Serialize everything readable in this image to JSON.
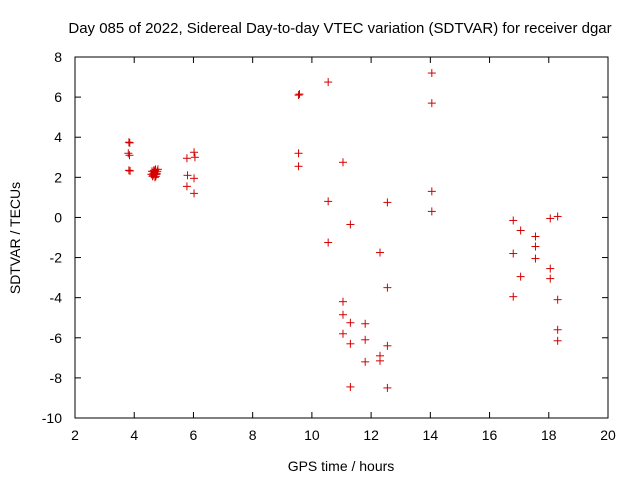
{
  "chart_data": {
    "type": "scatter",
    "title": "Day 085 of 2022, Sidereal Day-to-day VTEC variation (SDTVAR) for receiver dgar",
    "xlabel": "GPS time / hours",
    "ylabel": "SDTVAR / TECUs",
    "xlim": [
      2,
      20
    ],
    "ylim": [
      -10,
      8
    ],
    "xticks": [
      "2",
      "4",
      "6",
      "8",
      "10",
      "12",
      "14",
      "16",
      "18",
      "20"
    ],
    "yticks": [
      "-10",
      "-8",
      "-6",
      "-4",
      "-2",
      "0",
      "2",
      "4",
      "6",
      "8"
    ],
    "grid": false,
    "marker": "plus",
    "color": "#d40000",
    "series": [
      {
        "name": "SDTVAR",
        "points": [
          [
            3.82,
            3.75
          ],
          [
            3.85,
            3.72
          ],
          [
            3.8,
            3.2
          ],
          [
            3.84,
            3.1
          ],
          [
            3.82,
            2.35
          ],
          [
            3.86,
            2.32
          ],
          [
            4.6,
            2.3
          ],
          [
            4.65,
            2.2
          ],
          [
            4.7,
            2.35
          ],
          [
            4.75,
            2.15
          ],
          [
            4.62,
            2.05
          ],
          [
            4.68,
            2.25
          ],
          [
            4.72,
            2.4
          ],
          [
            4.78,
            2.3
          ],
          [
            4.64,
            2.1
          ],
          [
            4.7,
            2.0
          ],
          [
            4.76,
            2.2
          ],
          [
            4.66,
            2.35
          ],
          [
            4.8,
            2.4
          ],
          [
            4.58,
            2.15
          ],
          [
            4.73,
            2.05
          ],
          [
            4.69,
            2.28
          ],
          [
            5.78,
            2.95
          ],
          [
            6.02,
            3.25
          ],
          [
            6.05,
            3.0
          ],
          [
            5.8,
            2.1
          ],
          [
            6.02,
            1.95
          ],
          [
            5.78,
            1.55
          ],
          [
            6.02,
            1.2
          ],
          [
            9.55,
            6.1
          ],
          [
            9.58,
            6.15
          ],
          [
            9.55,
            3.2
          ],
          [
            9.55,
            2.55
          ],
          [
            10.55,
            6.75
          ],
          [
            10.55,
            0.8
          ],
          [
            10.55,
            -1.25
          ],
          [
            11.05,
            2.75
          ],
          [
            11.3,
            -0.35
          ],
          [
            11.05,
            -4.2
          ],
          [
            11.05,
            -4.85
          ],
          [
            11.3,
            -5.25
          ],
          [
            11.05,
            -5.8
          ],
          [
            11.3,
            -6.3
          ],
          [
            11.3,
            -8.45
          ],
          [
            11.8,
            -5.3
          ],
          [
            11.8,
            -6.1
          ],
          [
            11.8,
            -7.2
          ],
          [
            12.3,
            -1.75
          ],
          [
            12.3,
            -6.9
          ],
          [
            12.3,
            -7.15
          ],
          [
            12.55,
            0.75
          ],
          [
            12.55,
            -3.5
          ],
          [
            12.55,
            -6.4
          ],
          [
            12.55,
            -8.5
          ],
          [
            14.05,
            7.2
          ],
          [
            14.05,
            5.7
          ],
          [
            14.05,
            1.3
          ],
          [
            14.05,
            0.3
          ],
          [
            16.8,
            -0.15
          ],
          [
            17.05,
            -0.65
          ],
          [
            16.8,
            -1.8
          ],
          [
            17.05,
            -2.95
          ],
          [
            16.8,
            -3.95
          ],
          [
            17.55,
            -0.95
          ],
          [
            17.55,
            -1.45
          ],
          [
            17.55,
            -2.05
          ],
          [
            18.05,
            -0.05
          ],
          [
            18.3,
            0.05
          ],
          [
            18.05,
            -2.55
          ],
          [
            18.05,
            -3.05
          ],
          [
            18.3,
            -4.1
          ],
          [
            18.3,
            -5.6
          ],
          [
            18.3,
            -6.15
          ]
        ]
      }
    ]
  }
}
